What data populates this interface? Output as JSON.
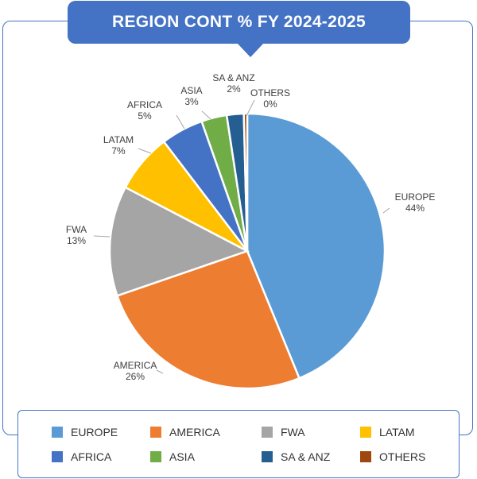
{
  "chart_data": {
    "type": "pie",
    "title": "REGION CONT % FY 2024-2025",
    "slices": [
      {
        "name": "EUROPE",
        "value": 44,
        "label": "44%",
        "color": "#5b9bd5"
      },
      {
        "name": "AMERICA",
        "value": 26,
        "label": "26%",
        "color": "#ed7d31"
      },
      {
        "name": "FWA",
        "value": 13,
        "label": "13%",
        "color": "#a5a5a5"
      },
      {
        "name": "LATAM",
        "value": 7,
        "label": "7%",
        "color": "#ffc000"
      },
      {
        "name": "AFRICA",
        "value": 5,
        "label": "5%",
        "color": "#4472c4"
      },
      {
        "name": "ASIA",
        "value": 3,
        "label": "3%",
        "color": "#70ad47"
      },
      {
        "name": "SA & ANZ",
        "value": 2,
        "label": "2%",
        "color": "#255e91"
      },
      {
        "name": "OTHERS",
        "value": 0.4,
        "label": "0%",
        "color": "#9e480e"
      }
    ],
    "legend_position": "bottom"
  }
}
